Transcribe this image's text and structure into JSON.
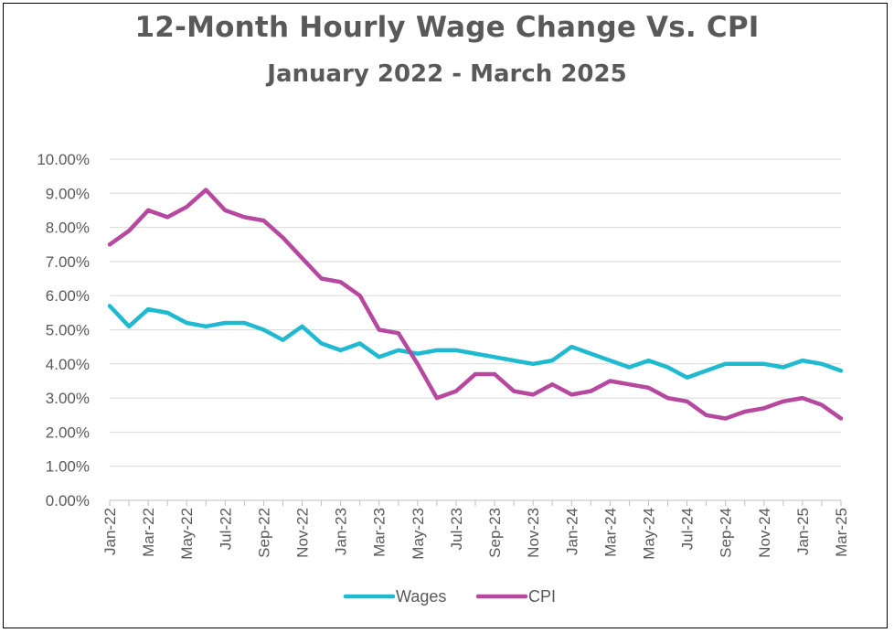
{
  "chart_data": {
    "type": "line",
    "title": "12-Month Hourly Wage Change Vs. CPI",
    "subtitle": "January 2022 - March 2025",
    "xlabel": "",
    "ylabel": "",
    "ylim": [
      0,
      10
    ],
    "y_ticks": [
      "0.00%",
      "1.00%",
      "2.00%",
      "3.00%",
      "4.00%",
      "5.00%",
      "6.00%",
      "7.00%",
      "8.00%",
      "9.00%",
      "10.00%"
    ],
    "x_tick_labels": [
      "Jan-22",
      "Mar-22",
      "May-22",
      "Jul-22",
      "Sep-22",
      "Nov-22",
      "Jan-23",
      "Mar-23",
      "May-23",
      "Jul-23",
      "Sep-23",
      "Nov-23",
      "Jan-24",
      "Mar-24",
      "May-24",
      "Jul-24",
      "Sep-24",
      "Nov-24",
      "Jan-25",
      "Mar-25"
    ],
    "x": [
      "Jan-22",
      "Feb-22",
      "Mar-22",
      "Apr-22",
      "May-22",
      "Jun-22",
      "Jul-22",
      "Aug-22",
      "Sep-22",
      "Oct-22",
      "Nov-22",
      "Dec-22",
      "Jan-23",
      "Feb-23",
      "Mar-23",
      "Apr-23",
      "May-23",
      "Jun-23",
      "Jul-23",
      "Aug-23",
      "Sep-23",
      "Oct-23",
      "Nov-23",
      "Dec-23",
      "Jan-24",
      "Feb-24",
      "Mar-24",
      "Apr-24",
      "May-24",
      "Jun-24",
      "Jul-24",
      "Aug-24",
      "Sep-24",
      "Oct-24",
      "Nov-24",
      "Dec-24",
      "Jan-25",
      "Feb-25",
      "Mar-25"
    ],
    "grid": true,
    "legend_position": "bottom",
    "series": [
      {
        "name": "Wages",
        "color": "#1FBAD0",
        "values": [
          5.7,
          5.1,
          5.6,
          5.5,
          5.2,
          5.1,
          5.2,
          5.2,
          5.0,
          4.7,
          5.1,
          4.6,
          4.4,
          4.6,
          4.2,
          4.4,
          4.3,
          4.4,
          4.4,
          4.3,
          4.2,
          4.1,
          4.0,
          4.1,
          4.5,
          4.3,
          4.1,
          3.9,
          4.1,
          3.9,
          3.6,
          3.8,
          4.0,
          4.0,
          4.0,
          3.9,
          4.1,
          4.0,
          3.8
        ]
      },
      {
        "name": "CPI",
        "color": "#B6489F",
        "values": [
          7.5,
          7.9,
          8.5,
          8.3,
          8.6,
          9.1,
          8.5,
          8.3,
          8.2,
          7.7,
          7.1,
          6.5,
          6.4,
          6.0,
          5.0,
          4.9,
          4.0,
          3.0,
          3.2,
          3.7,
          3.7,
          3.2,
          3.1,
          3.4,
          3.1,
          3.2,
          3.5,
          3.4,
          3.3,
          3.0,
          2.9,
          2.5,
          2.4,
          2.6,
          2.7,
          2.9,
          3.0,
          2.8,
          2.4
        ]
      }
    ]
  }
}
